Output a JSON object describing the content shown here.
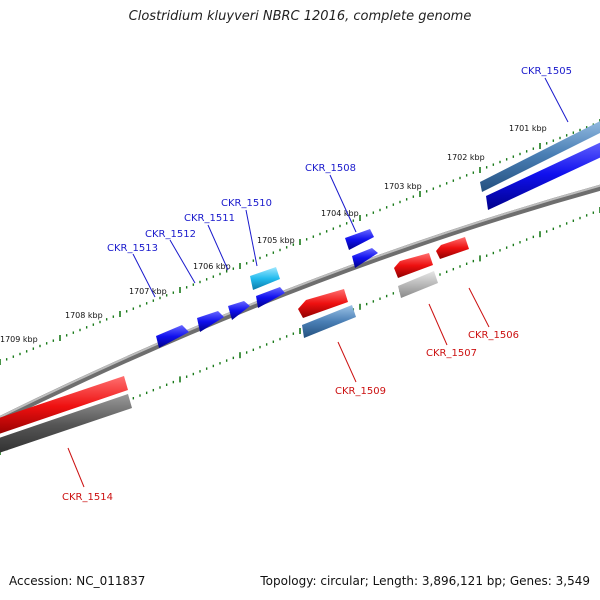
{
  "title": "Clostridium kluyveri NBRC 12016, complete genome",
  "footer": {
    "accession": "Accession: NC_011837",
    "topology": "Topology: circular; Length: 3,896,121 bp; Genes: 3,549"
  },
  "colors": {
    "forward": "#0000ee",
    "reverse": "#ee0000",
    "backbone": "#888888",
    "ticks": "#1a7a1a",
    "label_forward": "#1a1acc",
    "label_reverse": "#cc1111"
  },
  "scale": {
    "ticks": [
      {
        "label": "1701 kbp"
      },
      {
        "label": "1702 kbp"
      },
      {
        "label": "1703 kbp"
      },
      {
        "label": "1704 kbp"
      },
      {
        "label": "1705 kbp"
      },
      {
        "label": "1706 kbp"
      },
      {
        "label": "1707 kbp"
      },
      {
        "label": "1708 kbp"
      },
      {
        "label": "1709 kbp"
      }
    ]
  },
  "genes": [
    {
      "name": "CKR_1505",
      "strand": "forward",
      "color": "#1010ee"
    },
    {
      "name": "CKR_1506",
      "strand": "reverse",
      "color": "#ee1010"
    },
    {
      "name": "CKR_1507",
      "strand": "reverse",
      "color": "#ee1010"
    },
    {
      "name": "CKR_1508",
      "strand": "forward",
      "color": "#1010ee"
    },
    {
      "name": "CKR_1509",
      "strand": "reverse",
      "color": "#ee1010"
    },
    {
      "name": "CKR_1510",
      "strand": "forward",
      "color": "#22bbee"
    },
    {
      "name": "CKR_1511",
      "strand": "forward",
      "color": "#1010ee"
    },
    {
      "name": "CKR_1512",
      "strand": "forward",
      "color": "#1010ee"
    },
    {
      "name": "CKR_1513",
      "strand": "forward",
      "color": "#1010ee"
    },
    {
      "name": "CKR_1514",
      "strand": "reverse",
      "color": "#ee1010"
    }
  ]
}
